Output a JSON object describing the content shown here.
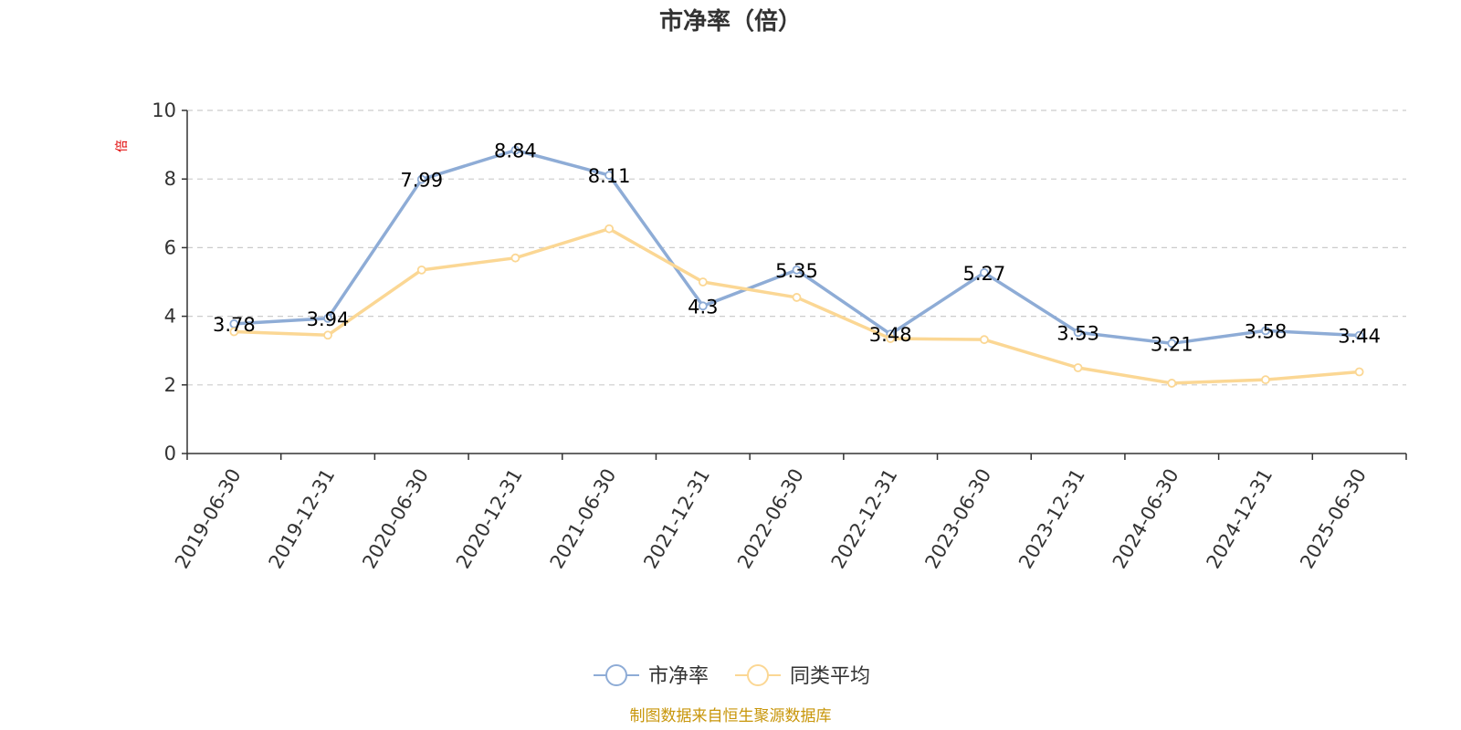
{
  "chart_data": {
    "type": "line",
    "title": "市净率（倍）",
    "ylabel": "倍",
    "ylim": [
      0,
      10
    ],
    "yticks": [
      0,
      2,
      4,
      6,
      8,
      10
    ],
    "grid": "horizontal-dashed",
    "legend_position": "bottom",
    "categories": [
      "2019-06-30",
      "2019-12-31",
      "2020-06-30",
      "2020-12-31",
      "2021-06-30",
      "2021-12-31",
      "2022-06-30",
      "2022-12-31",
      "2023-06-30",
      "2023-12-31",
      "2024-06-30",
      "2024-12-31",
      "2025-06-30"
    ],
    "series": [
      {
        "name": "市净率",
        "color": "#8eacd6",
        "values": [
          3.78,
          3.94,
          7.99,
          8.84,
          8.11,
          4.3,
          5.35,
          3.48,
          5.27,
          3.53,
          3.21,
          3.58,
          3.44
        ],
        "labels": [
          "3.78",
          "3.94",
          "7.99",
          "8.84",
          "8.11",
          "4.3",
          "5.35",
          "3.48",
          "5.27",
          "3.53",
          "3.21",
          "3.58",
          "3.44"
        ]
      },
      {
        "name": "同类平均",
        "color": "#fbd794",
        "values": [
          3.55,
          3.45,
          5.35,
          5.7,
          6.55,
          5.0,
          4.55,
          3.35,
          3.32,
          2.5,
          2.05,
          2.15,
          2.38
        ]
      }
    ],
    "source": "制图数据来自恒生聚源数据库"
  }
}
